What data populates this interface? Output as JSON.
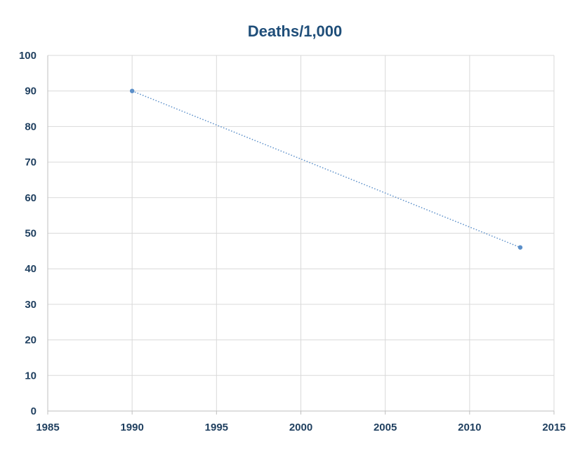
{
  "chart_data": {
    "type": "scatter",
    "title": "Deaths/1,000",
    "xlabel": "",
    "ylabel": "",
    "xlim": [
      1985,
      2015
    ],
    "ylim": [
      0,
      100
    ],
    "x_ticks": [
      1985,
      1990,
      1995,
      2000,
      2005,
      2010,
      2015
    ],
    "y_ticks": [
      0,
      10,
      20,
      30,
      40,
      50,
      60,
      70,
      80,
      90,
      100
    ],
    "grid": true,
    "legend": "none",
    "trendline": "linear, dotted",
    "series": [
      {
        "points": [
          {
            "x": 1990,
            "y": 90
          },
          {
            "x": 2013,
            "y": 46
          }
        ]
      }
    ]
  },
  "colors": {
    "title": "#1f4e79",
    "tick_labels": "#1f3f5f",
    "series": "#5b8fc9",
    "grid": "#d9d9d9",
    "axis": "#bfbfbf"
  }
}
